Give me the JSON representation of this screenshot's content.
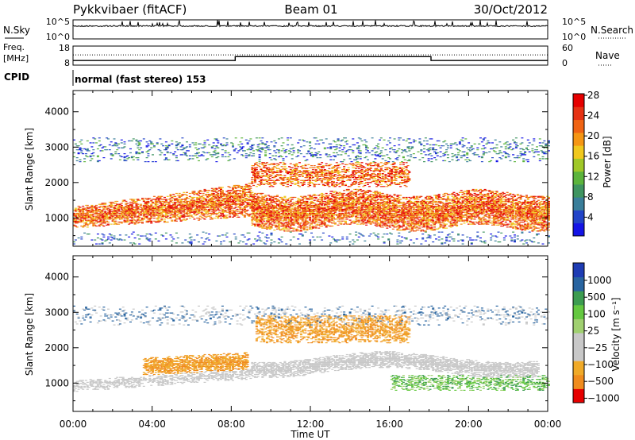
{
  "header": {
    "station": "Pykkvibaer (fitACF)",
    "beam": "Beam 01",
    "date": "30/Oct/2012"
  },
  "colors": {
    "background": "#ffffff",
    "axis": "#000000",
    "power_scale": [
      "#1414e6",
      "#2244c8",
      "#3a7e9a",
      "#3f9460",
      "#5cb43c",
      "#a0c828",
      "#f0c81e",
      "#f59614",
      "#f06414",
      "#e63214",
      "#e60000"
    ],
    "velocity_scale": [
      "#e60000",
      "#f08c1e",
      "#f0aa28",
      "#c8c8c8",
      "#c8c8c8",
      "#a0d070",
      "#64c840",
      "#3c9c50",
      "#2864a0",
      "#1e3cb4"
    ]
  },
  "chart_data": [
    {
      "panel": "nsky",
      "type": "line",
      "left_label": "N.Sky",
      "left_ticks": [
        "10^5",
        "10^0"
      ],
      "right_label": "N.Search",
      "right_ticks": [
        "10^5",
        "10^0"
      ]
    },
    {
      "panel": "freq",
      "type": "line",
      "left_label_1": "Freq.",
      "left_label_2": "[MHz]",
      "left_ticks": [
        "18",
        "8"
      ],
      "right_label": "Nave",
      "right_ticks": [
        "60",
        "0"
      ],
      "steps": [
        {
          "from_hour": 0,
          "to_hour": 8.2,
          "freq_mhz": 10.2
        },
        {
          "from_hour": 8.2,
          "to_hour": 18.1,
          "freq_mhz": 12.4
        },
        {
          "from_hour": 18.1,
          "to_hour": 24,
          "freq_mhz": 10.2
        }
      ],
      "dotted_level_mhz": 13.4
    },
    {
      "panel": "cpid",
      "type": "table",
      "label": "CPID",
      "value": "normal (fast stereo) 153"
    },
    {
      "panel": "power",
      "type": "heatmap",
      "ylabel": "Slant Range [km]",
      "yticks": [
        1000,
        2000,
        3000,
        4000
      ],
      "ylim": [
        200,
        4600
      ],
      "colorbar_label": "Power [dB]",
      "colorbar_ticks": [
        4,
        8,
        12,
        16,
        20,
        24,
        28
      ]
    },
    {
      "panel": "velocity",
      "type": "heatmap",
      "ylabel": "Slant Range [km]",
      "yticks": [
        1000,
        2000,
        3000,
        4000
      ],
      "ylim": [
        200,
        4600
      ],
      "colorbar_label": "Velocity [m s⁻¹]",
      "colorbar_ticks": [
        "1000",
        "500",
        "100",
        "25",
        "−25",
        "−100",
        "−500",
        "−1000"
      ]
    }
  ],
  "x_axis": {
    "label": "Time UT",
    "ticks": [
      "00:00",
      "04:00",
      "08:00",
      "12:00",
      "16:00",
      "20:00",
      "00:00"
    ],
    "xlim_hours": [
      0,
      24
    ]
  }
}
